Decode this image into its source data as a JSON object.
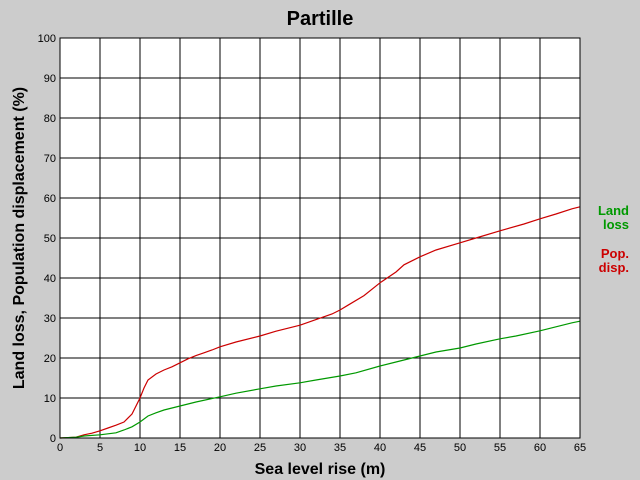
{
  "chart_data": {
    "type": "line",
    "title": "Partille",
    "xlabel": "Sea level rise (m)",
    "ylabel": "Land loss, Population displacement (%)",
    "xlim": [
      0,
      65
    ],
    "ylim": [
      0,
      100
    ],
    "xticks": [
      0,
      5,
      10,
      15,
      20,
      25,
      30,
      35,
      40,
      45,
      50,
      55,
      60,
      65
    ],
    "yticks": [
      0,
      10,
      20,
      30,
      40,
      50,
      60,
      70,
      80,
      90,
      100
    ],
    "grid": true,
    "legend_position": "right",
    "series": [
      {
        "name": "Pop. disp.",
        "legend_lines": [
          "Pop.",
          "disp."
        ],
        "color": "#cc0000",
        "x": [
          0,
          2,
          3,
          4,
          5,
          6,
          7,
          8,
          9,
          10,
          10.5,
          11,
          12,
          13,
          14,
          15,
          16,
          17,
          18,
          19,
          20,
          22,
          25,
          27,
          30,
          32,
          34,
          35,
          36,
          38,
          40,
          42,
          43,
          45,
          47,
          50,
          52,
          55,
          58,
          60,
          62,
          64,
          65
        ],
        "y": [
          0,
          0.2,
          0.8,
          1.2,
          1.8,
          2.5,
          3.2,
          4.0,
          6.0,
          10.0,
          12.5,
          14.5,
          16.0,
          17.0,
          17.8,
          18.8,
          19.8,
          20.6,
          21.3,
          22.0,
          22.8,
          24.0,
          25.5,
          26.7,
          28.2,
          29.6,
          31.0,
          32.0,
          33.2,
          35.6,
          38.8,
          41.5,
          43.3,
          45.3,
          47.0,
          48.8,
          50.0,
          51.8,
          53.5,
          54.8,
          56.0,
          57.3,
          57.8
        ]
      },
      {
        "name": "Land loss",
        "legend_lines": [
          "Land",
          "loss"
        ],
        "color": "#009900",
        "x": [
          0,
          2,
          3,
          5,
          7,
          8,
          9,
          10,
          11,
          12,
          13,
          15,
          17,
          20,
          22,
          25,
          27,
          30,
          32,
          35,
          37,
          40,
          42,
          45,
          47,
          50,
          52,
          55,
          57,
          60,
          62,
          64,
          65
        ],
        "y": [
          0,
          0.2,
          0.5,
          0.8,
          1.3,
          2.0,
          2.8,
          4.0,
          5.5,
          6.3,
          7.0,
          8.0,
          9.0,
          10.3,
          11.2,
          12.3,
          13.0,
          13.8,
          14.5,
          15.5,
          16.3,
          18.0,
          19.0,
          20.5,
          21.5,
          22.5,
          23.5,
          24.8,
          25.5,
          26.8,
          27.8,
          28.8,
          29.2
        ]
      }
    ]
  }
}
